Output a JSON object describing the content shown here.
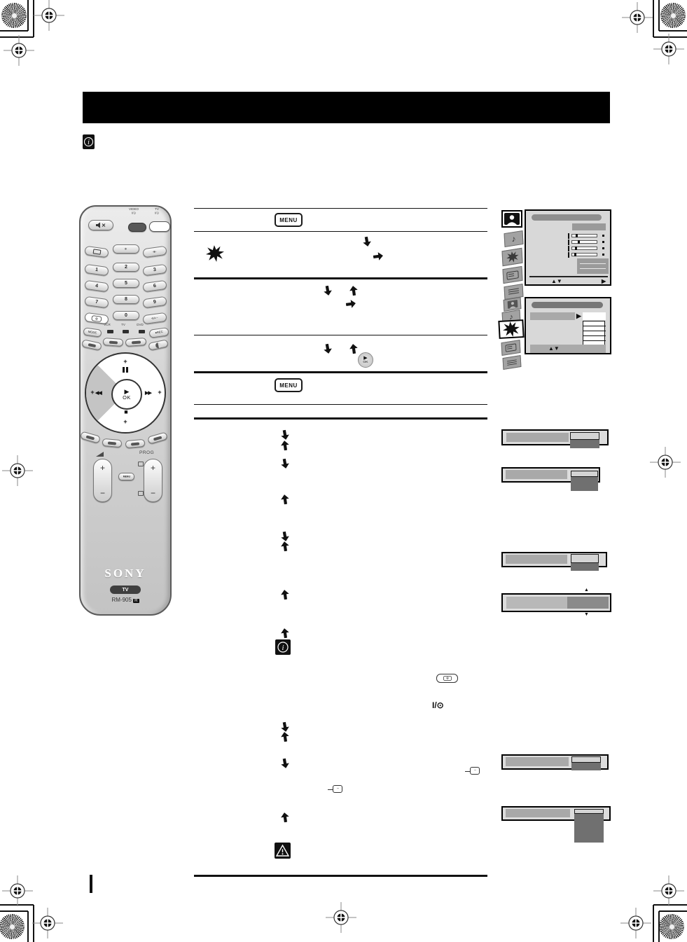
{
  "document": {
    "type": "tv-instruction-manual-page",
    "title_bar_text": ""
  },
  "remote": {
    "brand": "SONY",
    "model": "RM-905",
    "model_badge": "R",
    "tv_pill": "TV",
    "labels": {
      "video": "VIDEO",
      "tv": "TV",
      "power": "I/⊙",
      "mode": "MODE",
      "rec": "●REC",
      "prog": "PROG",
      "menu": "MENU",
      "vcr": "VCR",
      "tv2": "TV",
      "dvd": "DVD"
    },
    "digits": [
      "1",
      "2",
      "3",
      "4",
      "5",
      "6",
      "7",
      "8",
      "9",
      "0"
    ],
    "special_keys": {
      "jump": "⟲/+−",
      "analog": "⊕",
      "wide": "-⊕-",
      "pip": "⊕"
    },
    "pad": {
      "play": "▶",
      "ok": "OK",
      "rew": "◀◀",
      "ffwd": "▶▶",
      "stop": "■",
      "plus": "+"
    },
    "rocker": {
      "plus": "+",
      "minus": "−"
    }
  },
  "steps": {
    "menu_label": "MENU",
    "ok_play": "▶",
    "ok_label": "OK",
    "power_text": "I/⊙"
  },
  "screens": {
    "updown_hint": "▲▼",
    "right_hint": "▶",
    "select_arrow": "▶"
  },
  "colors": {
    "title_bar": "#000000",
    "remote_body": "#d6d6d6",
    "screen_panel": "#d8d8d8",
    "bar_fill": "#a9a9a9",
    "dropdown_dark": "#707070"
  },
  "icons": {
    "info": "circled-i",
    "warning": "triangle-exclamation",
    "features": "starburst",
    "picture": "person-in-frame",
    "sound": "music-note",
    "setup": "document-card",
    "text": "lines-card",
    "connector": "scart-jack",
    "registration": "crosshair-target",
    "pinwheel": "radial-target"
  }
}
